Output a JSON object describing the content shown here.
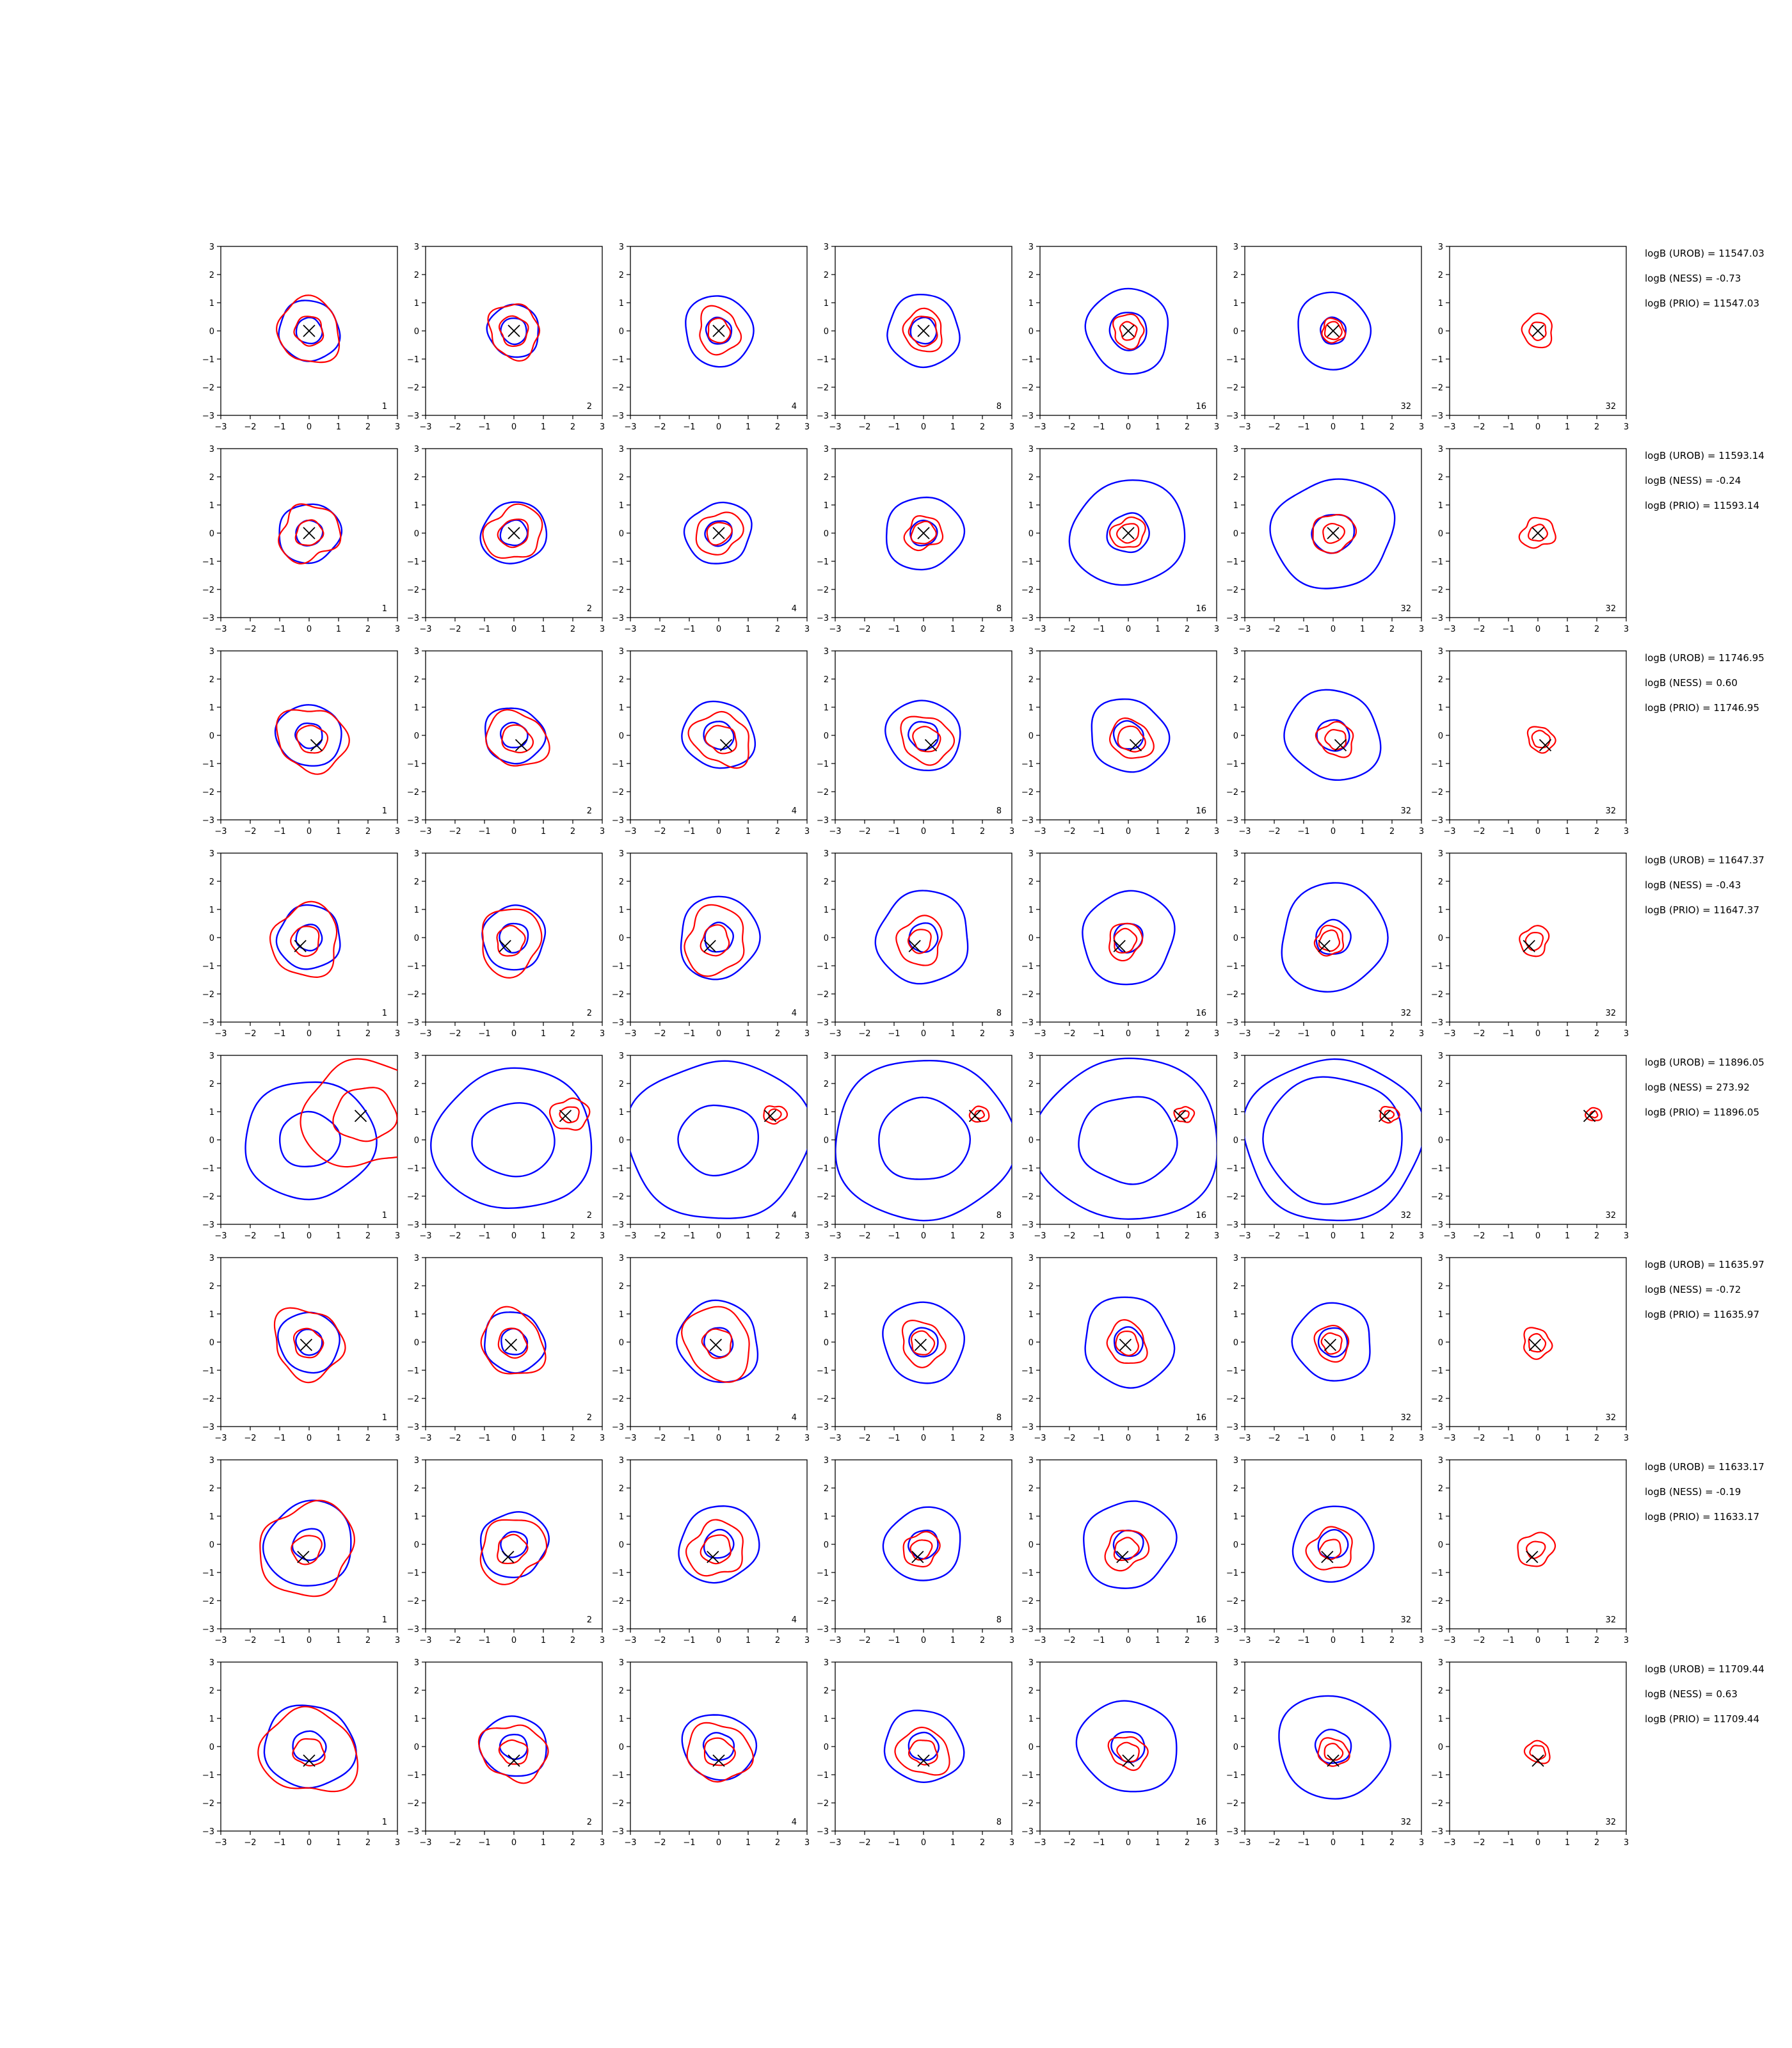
{
  "chart_data": {
    "type": "contour-grid",
    "rows": 8,
    "cols": 7,
    "xlim": [
      -3,
      3
    ],
    "ylim": [
      -3,
      3
    ],
    "ticks": [
      "−3",
      "−2",
      "−1",
      "0",
      "1",
      "2",
      "3"
    ],
    "tick_values": [
      -3,
      -2,
      -1,
      0,
      1,
      2,
      3
    ],
    "column_labels": [
      "1",
      "2",
      "4",
      "8",
      "16",
      "32",
      "32"
    ],
    "colors": {
      "blue": "#0000ff",
      "red": "#ff0000",
      "marker": "#000000"
    },
    "marker_shape": "x-cross",
    "rows_data": [
      {
        "marker": [
          0.0,
          0.0
        ],
        "stats": {
          "urob": "logB (UROB) = 11547.03",
          "ness": "logB (NESS) = -0.73",
          "prio": "logB (PRIO) = 11547.03"
        },
        "blue": [
          [
            1.05,
            0.45
          ],
          [
            0.9,
            0.45
          ],
          [
            1.2,
            0.45
          ],
          [
            1.25,
            0.45
          ],
          [
            1.45,
            0.65
          ],
          [
            1.3,
            0.45
          ],
          [
            0.0,
            0.0
          ]
        ],
        "red": [
          [
            1.1,
            0.5
          ],
          [
            0.9,
            0.5
          ],
          [
            0.75,
            0.4
          ],
          [
            0.7,
            0.5
          ],
          [
            0.55,
            0.3
          ],
          [
            0.4,
            0.3
          ],
          [
            0.55,
            0.3
          ]
        ]
      },
      {
        "marker": [
          0.0,
          0.0
        ],
        "stats": {
          "urob": "logB (UROB) = 11593.14",
          "ness": "logB (NESS) = -0.24",
          "prio": "logB (PRIO) = 11593.14"
        },
        "blue": [
          [
            1.05,
            0.45
          ],
          [
            1.1,
            0.45
          ],
          [
            1.1,
            0.45
          ],
          [
            1.3,
            0.45
          ],
          [
            1.9,
            0.7
          ],
          [
            2.0,
            0.7
          ],
          [
            0.0,
            0.0
          ]
        ],
        "red": [
          [
            1.0,
            0.45
          ],
          [
            0.95,
            0.5
          ],
          [
            0.75,
            0.4
          ],
          [
            0.6,
            0.4
          ],
          [
            0.55,
            0.35
          ],
          [
            0.7,
            0.35
          ],
          [
            0.55,
            0.3
          ]
        ]
      },
      {
        "marker": [
          0.25,
          -0.35
        ],
        "stats": {
          "urob": "logB (UROB) = 11746.95",
          "ness": "logB (NESS) = 0.60",
          "prio": "logB (PRIO) = 11746.95"
        },
        "blue": [
          [
            1.1,
            0.45
          ],
          [
            1.0,
            0.45
          ],
          [
            1.2,
            0.5
          ],
          [
            1.25,
            0.5
          ],
          [
            1.3,
            0.5
          ],
          [
            1.6,
            0.55
          ],
          [
            0.0,
            0.0
          ]
        ],
        "red": [
          [
            1.15,
            0.5
          ],
          [
            1.0,
            0.5
          ],
          [
            0.95,
            0.5
          ],
          [
            0.85,
            0.45
          ],
          [
            0.7,
            0.45
          ],
          [
            0.6,
            0.35
          ],
          [
            0.45,
            0.3
          ]
        ]
      },
      {
        "marker": [
          -0.3,
          -0.3
        ],
        "stats": {
          "urob": "logB (UROB) = 11647.37",
          "ness": "logB (NESS) = -0.43",
          "prio": "logB (PRIO) = 11647.37"
        },
        "blue": [
          [
            1.1,
            0.45
          ],
          [
            1.1,
            0.5
          ],
          [
            1.4,
            0.5
          ],
          [
            1.6,
            0.5
          ],
          [
            1.6,
            0.5
          ],
          [
            1.85,
            0.6
          ],
          [
            0.0,
            0.0
          ]
        ],
        "red": [
          [
            1.2,
            0.5
          ],
          [
            1.1,
            0.5
          ],
          [
            1.1,
            0.5
          ],
          [
            0.8,
            0.4
          ],
          [
            0.6,
            0.4
          ],
          [
            0.5,
            0.35
          ],
          [
            0.5,
            0.3
          ]
        ]
      },
      {
        "marker": [
          1.75,
          0.85
        ],
        "stats": {
          "urob": "logB (UROB) = 11896.05",
          "ness": "logB (NESS) = 273.92",
          "prio": "logB (PRIO) = 11896.05"
        },
        "blue": [
          [
            2.15,
            1.0
          ],
          [
            2.6,
            1.35
          ],
          [
            2.95,
            1.3
          ],
          [
            2.95,
            1.5
          ],
          [
            3.0,
            1.6
          ],
          [
            2.95,
            2.3
          ],
          [
            0.0,
            0.0
          ]
        ],
        "red": [
          [
            2.0,
            1.0
          ],
          [
            0.6,
            0.3
          ],
          [
            0.35,
            0.2
          ],
          [
            0.3,
            0.15
          ],
          [
            0.3,
            0.15
          ],
          [
            0.3,
            0.15
          ],
          [
            0.25,
            0.12
          ]
        ]
      },
      {
        "marker": [
          -0.1,
          -0.1
        ],
        "stats": {
          "urob": "logB (UROB) = 11635.97",
          "ness": "logB (NESS) = -0.72",
          "prio": "logB (PRIO) = 11635.97"
        },
        "blue": [
          [
            1.05,
            0.45
          ],
          [
            1.05,
            0.45
          ],
          [
            1.4,
            0.5
          ],
          [
            1.4,
            0.5
          ],
          [
            1.55,
            0.5
          ],
          [
            1.35,
            0.5
          ],
          [
            0.0,
            0.0
          ]
        ],
        "red": [
          [
            1.2,
            0.5
          ],
          [
            1.1,
            0.5
          ],
          [
            1.2,
            0.5
          ],
          [
            0.75,
            0.4
          ],
          [
            0.7,
            0.4
          ],
          [
            0.6,
            0.35
          ],
          [
            0.5,
            0.3
          ]
        ]
      },
      {
        "marker": [
          -0.2,
          -0.45
        ],
        "stats": {
          "urob": "logB (UROB) = 11633.17",
          "ness": "logB (NESS) = -0.19",
          "prio": "logB (PRIO) = 11633.17"
        },
        "blue": [
          [
            1.5,
            0.55
          ],
          [
            1.15,
            0.45
          ],
          [
            1.35,
            0.5
          ],
          [
            1.3,
            0.5
          ],
          [
            1.55,
            0.5
          ],
          [
            1.35,
            0.5
          ],
          [
            0.0,
            0.0
          ]
        ],
        "red": [
          [
            1.6,
            0.5
          ],
          [
            1.1,
            0.5
          ],
          [
            0.95,
            0.5
          ],
          [
            0.6,
            0.35
          ],
          [
            0.7,
            0.4
          ],
          [
            0.75,
            0.35
          ],
          [
            0.6,
            0.3
          ]
        ]
      },
      {
        "marker": [
          0.0,
          -0.5
        ],
        "stats": {
          "urob": "logB (UROB) = 11709.44",
          "ness": "logB (NESS) = 0.63",
          "prio": "logB (PRIO) = 11709.44"
        },
        "blue": [
          [
            1.5,
            0.55
          ],
          [
            1.1,
            0.45
          ],
          [
            1.2,
            0.5
          ],
          [
            1.3,
            0.5
          ],
          [
            1.65,
            0.55
          ],
          [
            1.85,
            0.6
          ],
          [
            0.0,
            0.0
          ]
        ],
        "red": [
          [
            1.55,
            0.5
          ],
          [
            1.05,
            0.45
          ],
          [
            1.05,
            0.5
          ],
          [
            0.85,
            0.45
          ],
          [
            0.6,
            0.35
          ],
          [
            0.5,
            0.3
          ],
          [
            0.4,
            0.25
          ]
        ]
      }
    ]
  }
}
